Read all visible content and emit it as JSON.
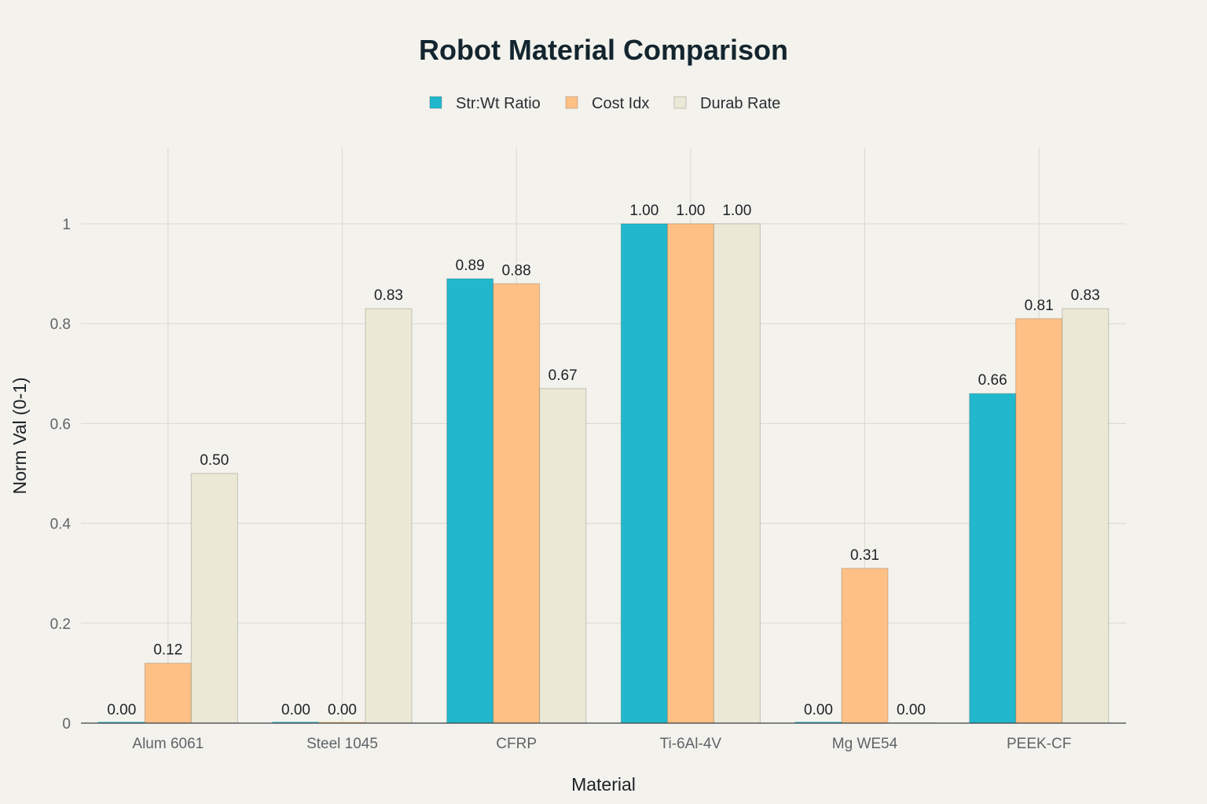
{
  "chart_data": {
    "type": "bar",
    "title": "Robot Material Comparison",
    "xlabel": "Material",
    "ylabel": "Norm Val (0-1)",
    "ylim": [
      0,
      1.15
    ],
    "yticks": [
      0,
      0.2,
      0.4,
      0.6,
      0.8,
      1
    ],
    "ytick_labels": [
      "0",
      "0.2",
      "0.4",
      "0.6",
      "0.8",
      "1"
    ],
    "grid": true,
    "legend_position": "top-center",
    "categories": [
      "Alum 6061",
      "Steel 1045",
      "CFRP",
      "Ti-6Al-4V",
      "Mg WE54",
      "PEEK-CF"
    ],
    "series": [
      {
        "name": "Str:Wt Ratio",
        "color": "#21b8cd",
        "values": [
          0.0,
          0.0,
          0.89,
          1.0,
          0.0,
          0.66
        ],
        "labels": [
          "0.00",
          "0.00",
          "0.89",
          "1.00",
          "0.00",
          "0.66"
        ]
      },
      {
        "name": "Cost Idx",
        "color": "#fec085",
        "values": [
          0.12,
          0.0,
          0.88,
          1.0,
          0.31,
          0.81
        ],
        "labels": [
          "0.12",
          "0.00",
          "0.88",
          "1.00",
          "0.31",
          "0.81"
        ]
      },
      {
        "name": "Durab Rate",
        "color": "#ebe9d6",
        "values": [
          0.5,
          0.83,
          0.67,
          1.0,
          0.0,
          0.83
        ],
        "labels": [
          "0.50",
          "0.83",
          "0.67",
          "1.00",
          "0.00",
          "0.83"
        ]
      }
    ]
  }
}
